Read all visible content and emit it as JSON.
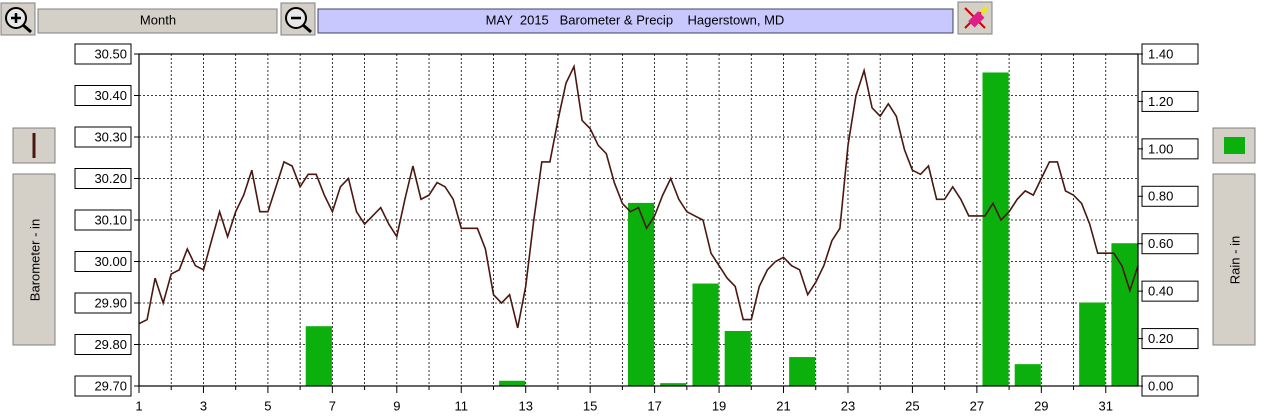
{
  "toolbar": {
    "period": "Month"
  },
  "chart_data": {
    "type": "combo",
    "title": "MAY  2015   Barometer & Precip    Hagerstown, MD",
    "xlim": [
      1,
      32
    ],
    "xticks": [
      1,
      3,
      5,
      7,
      9,
      11,
      13,
      15,
      17,
      19,
      21,
      23,
      25,
      27,
      29,
      31
    ],
    "x_minor_ticks": [
      2,
      4,
      6,
      8,
      10,
      12,
      14,
      16,
      18,
      20,
      22,
      24,
      26,
      28,
      30
    ],
    "ylim": [
      29.7,
      30.5
    ],
    "yticks": [
      {
        "value": 29.7,
        "label": "29.70"
      },
      {
        "value": 29.8,
        "label": "29.80"
      },
      {
        "value": 29.9,
        "label": "29.90"
      },
      {
        "value": 30.0,
        "label": "30.00"
      },
      {
        "value": 30.1,
        "label": "30.10"
      },
      {
        "value": 30.2,
        "label": "30.20"
      },
      {
        "value": 30.3,
        "label": "30.30"
      },
      {
        "value": 30.4,
        "label": "30.40"
      },
      {
        "value": 30.5,
        "label": "30.50"
      }
    ],
    "y2lim": [
      0,
      1.4
    ],
    "y2ticks": [
      {
        "value": 0,
        "label": "0.00"
      },
      {
        "value": 0.2,
        "label": "0.20"
      },
      {
        "value": 0.4,
        "label": "0.40"
      },
      {
        "value": 0.6,
        "label": "0.60"
      },
      {
        "value": 0.8,
        "label": "0.80"
      },
      {
        "value": 1.0,
        "label": "1.00"
      },
      {
        "value": 1.2,
        "label": "1.20"
      },
      {
        "value": 1.4,
        "label": "1.40"
      }
    ],
    "grid": true,
    "series": [
      {
        "name": "Barometer - in",
        "type": "line",
        "color": "#4a1810",
        "axis": "y",
        "x": [
          1,
          1.25,
          1.5,
          1.75,
          2,
          2.25,
          2.5,
          2.75,
          3,
          3.25,
          3.5,
          3.75,
          4,
          4.25,
          4.5,
          4.75,
          5,
          5.25,
          5.5,
          5.75,
          6,
          6.25,
          6.5,
          6.75,
          7,
          7.25,
          7.5,
          7.75,
          8,
          8.25,
          8.5,
          8.75,
          9,
          9.25,
          9.5,
          9.75,
          10,
          10.25,
          10.5,
          10.75,
          11,
          11.25,
          11.5,
          11.75,
          12,
          12.25,
          12.5,
          12.75,
          13,
          13.25,
          13.5,
          13.75,
          14,
          14.25,
          14.5,
          14.75,
          15,
          15.25,
          15.5,
          15.75,
          16,
          16.25,
          16.5,
          16.75,
          17,
          17.25,
          17.5,
          17.75,
          18,
          18.25,
          18.5,
          18.75,
          19,
          19.25,
          19.5,
          19.75,
          20,
          20.25,
          20.5,
          20.75,
          21,
          21.25,
          21.5,
          21.75,
          22,
          22.25,
          22.5,
          22.75,
          23,
          23.25,
          23.5,
          23.75,
          24,
          24.25,
          24.5,
          24.75,
          25,
          25.25,
          25.5,
          25.75,
          26,
          26.25,
          26.5,
          26.75,
          27,
          27.25,
          27.5,
          27.75,
          28,
          28.25,
          28.5,
          28.75,
          29,
          29.25,
          29.5,
          29.75,
          30,
          30.25,
          30.5,
          30.75,
          31,
          31.25,
          31.5,
          31.75,
          32
        ],
        "values": [
          29.85,
          29.86,
          29.96,
          29.9,
          29.97,
          29.98,
          30.03,
          29.99,
          29.98,
          30.05,
          30.12,
          30.06,
          30.12,
          30.16,
          30.22,
          30.12,
          30.12,
          30.18,
          30.24,
          30.23,
          30.18,
          30.21,
          30.21,
          30.16,
          30.12,
          30.18,
          30.2,
          30.12,
          30.09,
          30.11,
          30.13,
          30.09,
          30.06,
          30.15,
          30.23,
          30.15,
          30.16,
          30.19,
          30.18,
          30.15,
          30.08,
          30.08,
          30.08,
          30.03,
          29.92,
          29.9,
          29.92,
          29.84,
          29.94,
          30.1,
          30.24,
          30.24,
          30.34,
          30.43,
          30.47,
          30.34,
          30.32,
          30.28,
          30.26,
          30.19,
          30.14,
          30.12,
          30.13,
          30.08,
          30.11,
          30.16,
          30.2,
          30.15,
          30.12,
          30.11,
          30.1,
          30.02,
          29.99,
          29.96,
          29.94,
          29.86,
          29.86,
          29.94,
          29.98,
          30.0,
          30.01,
          29.99,
          29.98,
          29.92,
          29.95,
          29.99,
          30.05,
          30.08,
          30.28,
          30.4,
          30.46,
          30.37,
          30.35,
          30.38,
          30.35,
          30.27,
          30.22,
          30.21,
          30.23,
          30.15,
          30.15,
          30.18,
          30.15,
          30.11,
          30.11,
          30.11,
          30.14,
          30.1,
          30.12,
          30.15,
          30.17,
          30.16,
          30.2,
          30.24,
          30.24,
          30.17,
          30.16,
          30.14,
          30.09,
          30.02,
          30.02,
          30.02,
          29.99,
          29.93,
          29.99
        ]
      },
      {
        "name": "Rain - in",
        "type": "bar",
        "color": "#0cb00c",
        "axis": "y2",
        "x": [
          1,
          2,
          3,
          4,
          5,
          6,
          7,
          8,
          9,
          10,
          11,
          12,
          13,
          14,
          15,
          16,
          17,
          18,
          19,
          20,
          21,
          22,
          23,
          24,
          25,
          26,
          27,
          28,
          29,
          30,
          31
        ],
        "values": [
          0,
          0,
          0,
          0,
          0,
          0.25,
          0,
          0,
          0,
          0,
          0,
          0.02,
          0,
          0,
          0,
          0.77,
          0.01,
          0.43,
          0.23,
          0,
          0.12,
          0,
          0,
          0,
          0,
          0,
          1.32,
          0.09,
          0,
          0.35,
          0.6
        ]
      }
    ]
  }
}
